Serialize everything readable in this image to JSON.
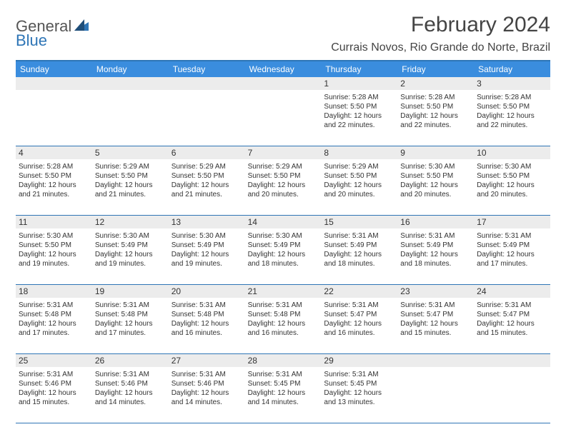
{
  "logo": {
    "text1": "General",
    "text2": "Blue"
  },
  "header": {
    "title": "February 2024",
    "location": "Currais Novos, Rio Grande do Norte, Brazil"
  },
  "colors": {
    "accent": "#3a8dde",
    "border": "#2e75b6",
    "shaded": "#ececec"
  },
  "dayNames": [
    "Sunday",
    "Monday",
    "Tuesday",
    "Wednesday",
    "Thursday",
    "Friday",
    "Saturday"
  ],
  "weeks": [
    [
      {
        "day": "",
        "sunrise": "",
        "sunset": "",
        "daylight1": "",
        "daylight2": ""
      },
      {
        "day": "",
        "sunrise": "",
        "sunset": "",
        "daylight1": "",
        "daylight2": ""
      },
      {
        "day": "",
        "sunrise": "",
        "sunset": "",
        "daylight1": "",
        "daylight2": ""
      },
      {
        "day": "",
        "sunrise": "",
        "sunset": "",
        "daylight1": "",
        "daylight2": ""
      },
      {
        "day": "1",
        "sunrise": "Sunrise: 5:28 AM",
        "sunset": "Sunset: 5:50 PM",
        "daylight1": "Daylight: 12 hours",
        "daylight2": "and 22 minutes."
      },
      {
        "day": "2",
        "sunrise": "Sunrise: 5:28 AM",
        "sunset": "Sunset: 5:50 PM",
        "daylight1": "Daylight: 12 hours",
        "daylight2": "and 22 minutes."
      },
      {
        "day": "3",
        "sunrise": "Sunrise: 5:28 AM",
        "sunset": "Sunset: 5:50 PM",
        "daylight1": "Daylight: 12 hours",
        "daylight2": "and 22 minutes."
      }
    ],
    [
      {
        "day": "4",
        "sunrise": "Sunrise: 5:28 AM",
        "sunset": "Sunset: 5:50 PM",
        "daylight1": "Daylight: 12 hours",
        "daylight2": "and 21 minutes."
      },
      {
        "day": "5",
        "sunrise": "Sunrise: 5:29 AM",
        "sunset": "Sunset: 5:50 PM",
        "daylight1": "Daylight: 12 hours",
        "daylight2": "and 21 minutes."
      },
      {
        "day": "6",
        "sunrise": "Sunrise: 5:29 AM",
        "sunset": "Sunset: 5:50 PM",
        "daylight1": "Daylight: 12 hours",
        "daylight2": "and 21 minutes."
      },
      {
        "day": "7",
        "sunrise": "Sunrise: 5:29 AM",
        "sunset": "Sunset: 5:50 PM",
        "daylight1": "Daylight: 12 hours",
        "daylight2": "and 20 minutes."
      },
      {
        "day": "8",
        "sunrise": "Sunrise: 5:29 AM",
        "sunset": "Sunset: 5:50 PM",
        "daylight1": "Daylight: 12 hours",
        "daylight2": "and 20 minutes."
      },
      {
        "day": "9",
        "sunrise": "Sunrise: 5:30 AM",
        "sunset": "Sunset: 5:50 PM",
        "daylight1": "Daylight: 12 hours",
        "daylight2": "and 20 minutes."
      },
      {
        "day": "10",
        "sunrise": "Sunrise: 5:30 AM",
        "sunset": "Sunset: 5:50 PM",
        "daylight1": "Daylight: 12 hours",
        "daylight2": "and 20 minutes."
      }
    ],
    [
      {
        "day": "11",
        "sunrise": "Sunrise: 5:30 AM",
        "sunset": "Sunset: 5:50 PM",
        "daylight1": "Daylight: 12 hours",
        "daylight2": "and 19 minutes."
      },
      {
        "day": "12",
        "sunrise": "Sunrise: 5:30 AM",
        "sunset": "Sunset: 5:49 PM",
        "daylight1": "Daylight: 12 hours",
        "daylight2": "and 19 minutes."
      },
      {
        "day": "13",
        "sunrise": "Sunrise: 5:30 AM",
        "sunset": "Sunset: 5:49 PM",
        "daylight1": "Daylight: 12 hours",
        "daylight2": "and 19 minutes."
      },
      {
        "day": "14",
        "sunrise": "Sunrise: 5:30 AM",
        "sunset": "Sunset: 5:49 PM",
        "daylight1": "Daylight: 12 hours",
        "daylight2": "and 18 minutes."
      },
      {
        "day": "15",
        "sunrise": "Sunrise: 5:31 AM",
        "sunset": "Sunset: 5:49 PM",
        "daylight1": "Daylight: 12 hours",
        "daylight2": "and 18 minutes."
      },
      {
        "day": "16",
        "sunrise": "Sunrise: 5:31 AM",
        "sunset": "Sunset: 5:49 PM",
        "daylight1": "Daylight: 12 hours",
        "daylight2": "and 18 minutes."
      },
      {
        "day": "17",
        "sunrise": "Sunrise: 5:31 AM",
        "sunset": "Sunset: 5:49 PM",
        "daylight1": "Daylight: 12 hours",
        "daylight2": "and 17 minutes."
      }
    ],
    [
      {
        "day": "18",
        "sunrise": "Sunrise: 5:31 AM",
        "sunset": "Sunset: 5:48 PM",
        "daylight1": "Daylight: 12 hours",
        "daylight2": "and 17 minutes."
      },
      {
        "day": "19",
        "sunrise": "Sunrise: 5:31 AM",
        "sunset": "Sunset: 5:48 PM",
        "daylight1": "Daylight: 12 hours",
        "daylight2": "and 17 minutes."
      },
      {
        "day": "20",
        "sunrise": "Sunrise: 5:31 AM",
        "sunset": "Sunset: 5:48 PM",
        "daylight1": "Daylight: 12 hours",
        "daylight2": "and 16 minutes."
      },
      {
        "day": "21",
        "sunrise": "Sunrise: 5:31 AM",
        "sunset": "Sunset: 5:48 PM",
        "daylight1": "Daylight: 12 hours",
        "daylight2": "and 16 minutes."
      },
      {
        "day": "22",
        "sunrise": "Sunrise: 5:31 AM",
        "sunset": "Sunset: 5:47 PM",
        "daylight1": "Daylight: 12 hours",
        "daylight2": "and 16 minutes."
      },
      {
        "day": "23",
        "sunrise": "Sunrise: 5:31 AM",
        "sunset": "Sunset: 5:47 PM",
        "daylight1": "Daylight: 12 hours",
        "daylight2": "and 15 minutes."
      },
      {
        "day": "24",
        "sunrise": "Sunrise: 5:31 AM",
        "sunset": "Sunset: 5:47 PM",
        "daylight1": "Daylight: 12 hours",
        "daylight2": "and 15 minutes."
      }
    ],
    [
      {
        "day": "25",
        "sunrise": "Sunrise: 5:31 AM",
        "sunset": "Sunset: 5:46 PM",
        "daylight1": "Daylight: 12 hours",
        "daylight2": "and 15 minutes."
      },
      {
        "day": "26",
        "sunrise": "Sunrise: 5:31 AM",
        "sunset": "Sunset: 5:46 PM",
        "daylight1": "Daylight: 12 hours",
        "daylight2": "and 14 minutes."
      },
      {
        "day": "27",
        "sunrise": "Sunrise: 5:31 AM",
        "sunset": "Sunset: 5:46 PM",
        "daylight1": "Daylight: 12 hours",
        "daylight2": "and 14 minutes."
      },
      {
        "day": "28",
        "sunrise": "Sunrise: 5:31 AM",
        "sunset": "Sunset: 5:45 PM",
        "daylight1": "Daylight: 12 hours",
        "daylight2": "and 14 minutes."
      },
      {
        "day": "29",
        "sunrise": "Sunrise: 5:31 AM",
        "sunset": "Sunset: 5:45 PM",
        "daylight1": "Daylight: 12 hours",
        "daylight2": "and 13 minutes."
      },
      {
        "day": "",
        "sunrise": "",
        "sunset": "",
        "daylight1": "",
        "daylight2": ""
      },
      {
        "day": "",
        "sunrise": "",
        "sunset": "",
        "daylight1": "",
        "daylight2": ""
      }
    ]
  ]
}
